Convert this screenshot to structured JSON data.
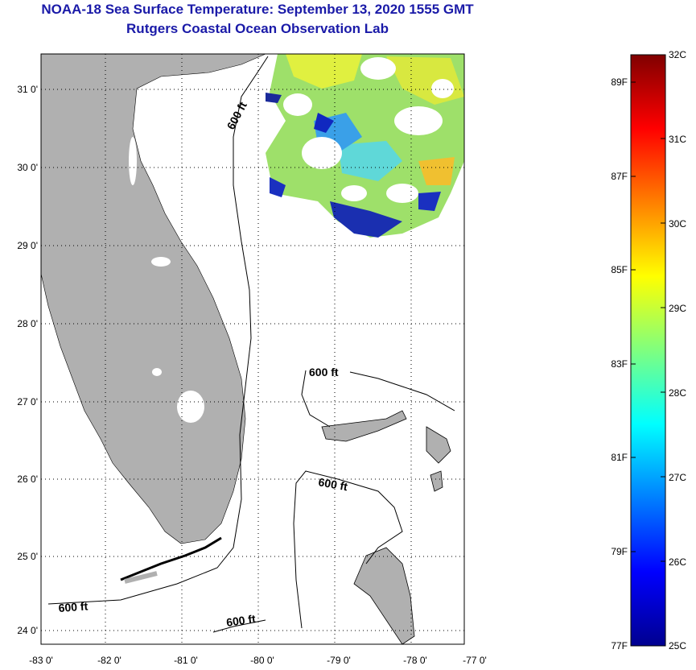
{
  "header": {
    "title": "NOAA-18 Sea Surface Temperature:  September 13, 2020 1555 GMT",
    "subtitle": "Rutgers Coastal Ocean Observation Lab"
  },
  "map": {
    "lon_ticks": [
      "-83 0'",
      "-82 0'",
      "-81 0'",
      "-80 0'",
      "-79 0'",
      "-78 0'",
      "-77 0'"
    ],
    "lat_ticks": [
      "31 0'",
      "30 0'",
      "29 0'",
      "28 0'",
      "27 0'",
      "26 0'",
      "25 0'",
      "24 0'"
    ],
    "contour_labels": [
      "600 ft",
      "600 ft",
      "600 ft",
      "600 ft",
      "600 ft"
    ],
    "colors": {
      "land": "#b0b0b0",
      "background": "#ffffff",
      "title": "#1a1aa8"
    }
  },
  "colorbar": {
    "celsius_labels": [
      "32C",
      "31C",
      "30C",
      "29C",
      "28C",
      "27C",
      "26C",
      "25C"
    ],
    "fahrenheit_labels": [
      "89F",
      "87F",
      "85F",
      "83F",
      "81F",
      "79F",
      "77F"
    ]
  }
}
